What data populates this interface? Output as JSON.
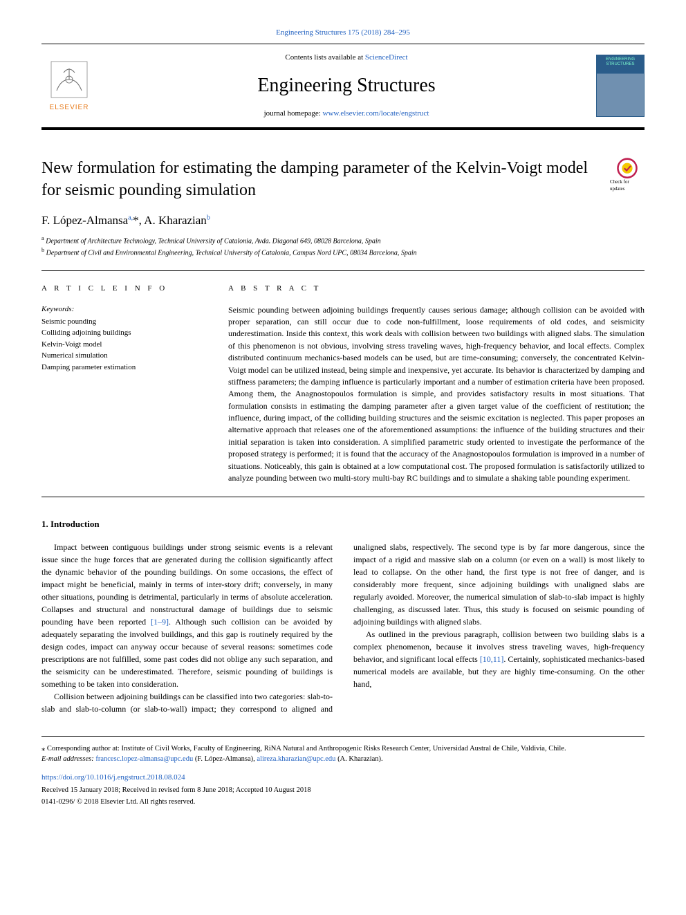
{
  "citation_line": "Engineering Structures 175 (2018) 284–295",
  "header": {
    "contents_prefix": "Contents lists available at ",
    "contents_link": "ScienceDirect",
    "journal_name": "Engineering Structures",
    "homepage_prefix": "journal homepage: ",
    "homepage_link": "www.elsevier.com/locate/engstruct",
    "publisher_name": "ELSEVIER",
    "cover_title": "ENGINEERING STRUCTURES"
  },
  "article": {
    "title": "New formulation for estimating the damping parameter of the Kelvin-Voigt model for seismic pounding simulation",
    "check_updates_label": "Check for updates",
    "authors_html": "F. López-Almansa<sup>a,</sup>*, A. Kharazian<sup>b</sup>",
    "affiliations": [
      {
        "sup": "a",
        "text": "Department of Architecture Technology, Technical University of Catalonia, Avda. Diagonal 649, 08028 Barcelona, Spain"
      },
      {
        "sup": "b",
        "text": "Department of Civil and Environmental Engineering, Technical University of Catalonia, Campus Nord UPC, 08034 Barcelona, Spain"
      }
    ]
  },
  "info": {
    "heading": "A R T I C L E  I N F O",
    "keywords_label": "Keywords:",
    "keywords": [
      "Seismic pounding",
      "Colliding adjoining buildings",
      "Kelvin-Voigt model",
      "Numerical simulation",
      "Damping parameter estimation"
    ]
  },
  "abstract": {
    "heading": "A B S T R A C T",
    "text": "Seismic pounding between adjoining buildings frequently causes serious damage; although collision can be avoided with proper separation, can still occur due to code non-fulfillment, loose requirements of old codes, and seismicity underestimation. Inside this context, this work deals with collision between two buildings with aligned slabs. The simulation of this phenomenon is not obvious, involving stress traveling waves, high-frequency behavior, and local effects. Complex distributed continuum mechanics-based models can be used, but are time-consuming; conversely, the concentrated Kelvin-Voigt model can be utilized instead, being simple and inexpensive, yet accurate. Its behavior is characterized by damping and stiffness parameters; the damping influence is particularly important and a number of estimation criteria have been proposed. Among them, the Anagnostopoulos formulation is simple, and provides satisfactory results in most situations. That formulation consists in estimating the damping parameter after a given target value of the coefficient of restitution; the influence, during impact, of the colliding building structures and the seismic excitation is neglected. This paper proposes an alternative approach that releases one of the aforementioned assumptions: the influence of the building structures and their initial separation is taken into consideration. A simplified parametric study oriented to investigate the performance of the proposed strategy is performed; it is found that the accuracy of the Anagnostopoulos formulation is improved in a number of situations. Noticeably, this gain is obtained at a low computational cost. The proposed formulation is satisfactorily utilized to analyze pounding between two multi-story multi-bay RC buildings and to simulate a shaking table pounding experiment."
  },
  "body": {
    "section_number": "1.",
    "section_title": "Introduction",
    "paragraphs": [
      "Impact between contiguous buildings under strong seismic events is a relevant issue since the huge forces that are generated during the collision significantly affect the dynamic behavior of the pounding buildings. On some occasions, the effect of impact might be beneficial, mainly in terms of inter-story drift; conversely, in many other situations, pounding is detrimental, particularly in terms of absolute acceleration. Collapses and structural and nonstructural damage of buildings due to seismic pounding have been reported <a href=\"#\" data-name=\"ref-link\" data-interactable=\"true\">[1–9]</a>. Although such collision can be avoided by adequately separating the involved buildings, and this gap is routinely required by the design codes, impact can anyway occur because of several reasons: sometimes code prescriptions are not fulfilled, some past codes did not oblige any such separation, and the seismicity can be underestimated. Therefore, seismic pounding of buildings is something to be taken into consideration.",
      "Collision between adjoining buildings can be classified into two categories: slab-to-slab and slab-to-column (or slab-to-wall) impact; they correspond to aligned and unaligned slabs, respectively. The second type is by far more dangerous, since the impact of a rigid and massive slab on a column (or even on a wall) is most likely to lead to collapse. On the other hand, the first type is not free of danger, and is considerably more frequent, since adjoining buildings with unaligned slabs are regularly avoided. Moreover, the numerical simulation of slab-to-slab impact is highly challenging, as discussed later. Thus, this study is focused on seismic pounding of adjoining buildings with aligned slabs.",
      "As outlined in the previous paragraph, collision between two building slabs is a complex phenomenon, because it involves stress traveling waves, high-frequency behavior, and significant local effects <a href=\"#\" data-name=\"ref-link\" data-interactable=\"true\">[10,11]</a>. Certainly, sophisticated mechanics-based numerical models are available, but they are highly time-consuming. On the other hand,"
    ]
  },
  "footer": {
    "corr_marker": "⁎",
    "corr_text": "Corresponding author at: Institute of Civil Works, Faculty of Engineering, RiNA Natural and Anthropogenic Risks Research Center, Universidad Austral de Chile, Valdivia, Chile.",
    "email_label": "E-mail addresses: ",
    "emails": [
      {
        "addr": "francesc.lopez-almansa@upc.edu",
        "name": "(F. López-Almansa)"
      },
      {
        "addr": "alireza.kharazian@upc.edu",
        "name": "(A. Kharazian)"
      }
    ],
    "doi": "https://doi.org/10.1016/j.engstruct.2018.08.024",
    "dates": "Received 15 January 2018; Received in revised form 8 June 2018; Accepted 10 August 2018",
    "copyright": "0141-0296/ © 2018 Elsevier Ltd. All rights reserved."
  },
  "colors": {
    "link": "#2060c0",
    "elsevier_orange": "#e67817",
    "cover_bg_top": "#2a5c8a",
    "cover_title": "#7fffd0",
    "crossmark_ring": "#c02050",
    "crossmark_inner": "#f5c800"
  }
}
